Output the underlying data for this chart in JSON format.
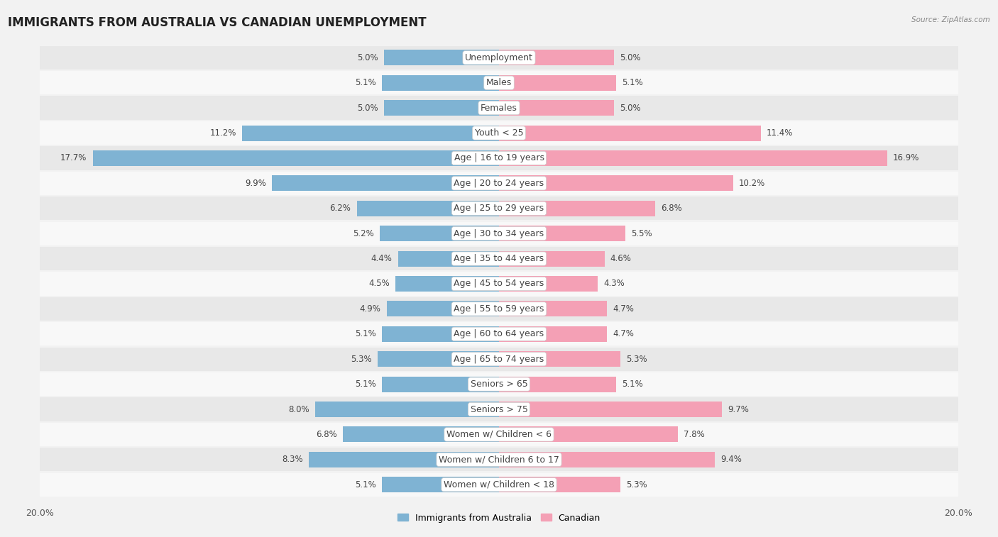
{
  "title": "IMMIGRANTS FROM AUSTRALIA VS CANADIAN UNEMPLOYMENT",
  "source": "Source: ZipAtlas.com",
  "categories": [
    "Unemployment",
    "Males",
    "Females",
    "Youth < 25",
    "Age | 16 to 19 years",
    "Age | 20 to 24 years",
    "Age | 25 to 29 years",
    "Age | 30 to 34 years",
    "Age | 35 to 44 years",
    "Age | 45 to 54 years",
    "Age | 55 to 59 years",
    "Age | 60 to 64 years",
    "Age | 65 to 74 years",
    "Seniors > 65",
    "Seniors > 75",
    "Women w/ Children < 6",
    "Women w/ Children 6 to 17",
    "Women w/ Children < 18"
  ],
  "left_values": [
    5.0,
    5.1,
    5.0,
    11.2,
    17.7,
    9.9,
    6.2,
    5.2,
    4.4,
    4.5,
    4.9,
    5.1,
    5.3,
    5.1,
    8.0,
    6.8,
    8.3,
    5.1
  ],
  "right_values": [
    5.0,
    5.1,
    5.0,
    11.4,
    16.9,
    10.2,
    6.8,
    5.5,
    4.6,
    4.3,
    4.7,
    4.7,
    5.3,
    5.1,
    9.7,
    7.8,
    9.4,
    5.3
  ],
  "left_color": "#7fb3d3",
  "right_color": "#f4a0b5",
  "background_color": "#f2f2f2",
  "row_color_odd": "#e8e8e8",
  "row_color_even": "#f8f8f8",
  "xlim": 20.0,
  "legend_labels": [
    "Immigrants from Australia",
    "Canadian"
  ],
  "title_fontsize": 12,
  "label_fontsize": 9,
  "value_fontsize": 8.5,
  "tick_fontsize": 9
}
